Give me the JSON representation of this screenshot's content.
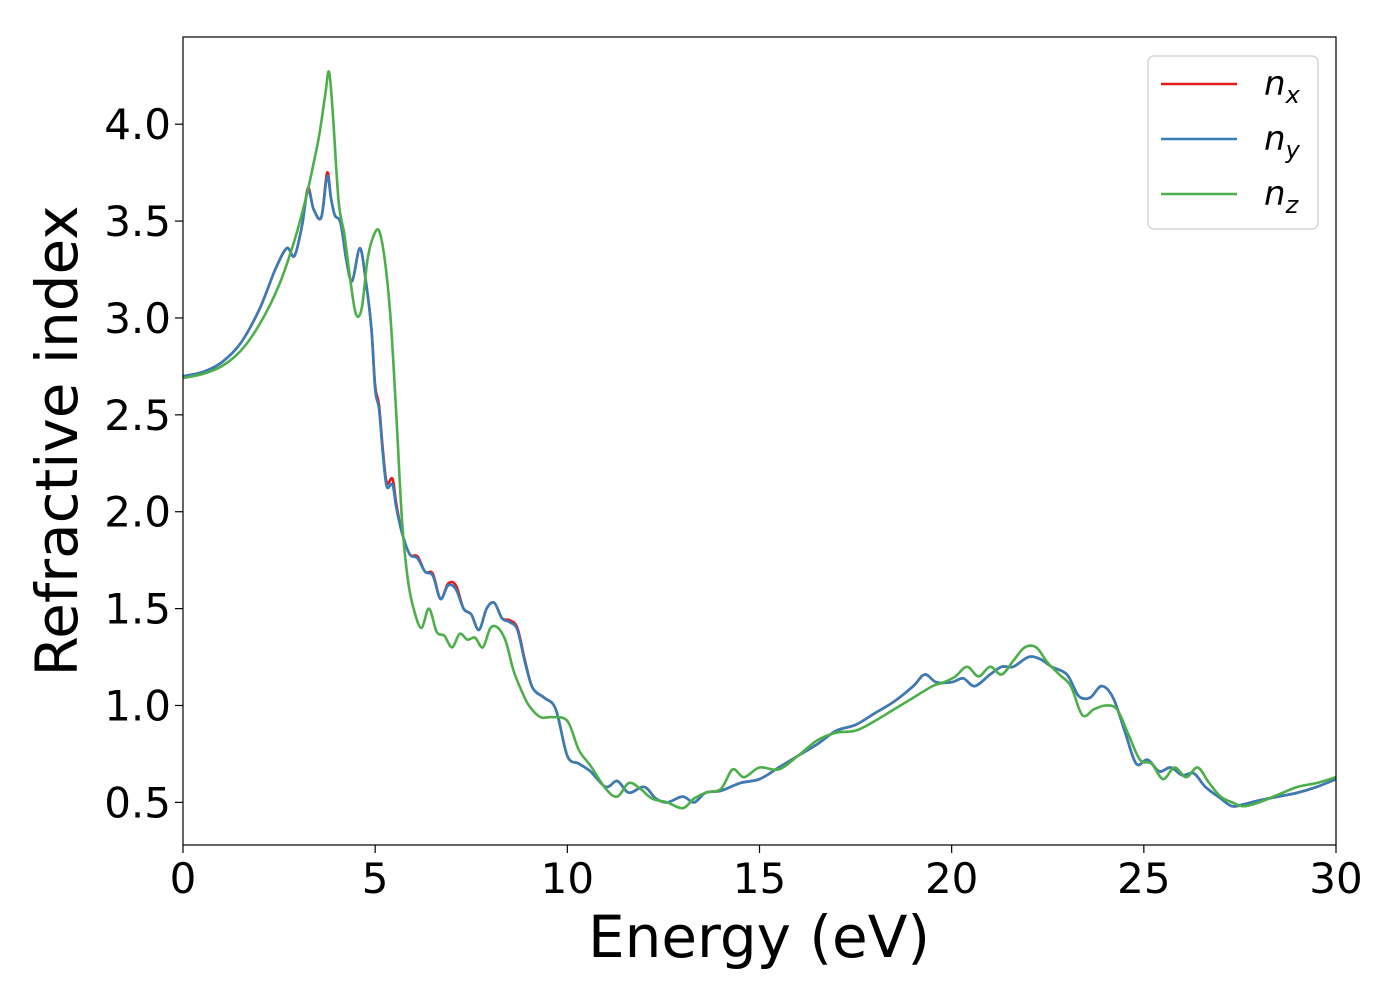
{
  "chart_data": {
    "type": "line",
    "xlabel": "Energy (eV)",
    "ylabel": "Refractive index",
    "xlim": [
      0,
      30
    ],
    "ylim": [
      0.28,
      4.45
    ],
    "xticks": [
      0,
      5,
      10,
      15,
      20,
      25,
      30
    ],
    "xtick_labels": [
      "0",
      "5",
      "10",
      "15",
      "20",
      "25",
      "30"
    ],
    "yticks": [
      0.5,
      1.0,
      1.5,
      2.0,
      2.5,
      3.0,
      3.5,
      4.0
    ],
    "ytick_labels": [
      "0.5",
      "1.0",
      "1.5",
      "2.0",
      "2.5",
      "3.0",
      "3.5",
      "4.0"
    ],
    "grid": false,
    "legend_position": "top-right",
    "series": [
      {
        "name": "n",
        "subscript": "x",
        "color": "#e41a1c",
        "x": [
          0,
          0.5,
          1,
          1.5,
          2,
          2.4,
          2.7,
          2.9,
          3.1,
          3.25,
          3.4,
          3.6,
          3.75,
          3.85,
          3.95,
          4.1,
          4.25,
          4.4,
          4.6,
          4.75,
          4.9,
          5.0,
          5.1,
          5.2,
          5.3,
          5.45,
          5.55,
          5.7,
          5.9,
          6.1,
          6.3,
          6.5,
          6.7,
          6.9,
          7.1,
          7.3,
          7.5,
          7.7,
          7.9,
          8.1,
          8.3,
          8.5,
          8.7,
          8.9,
          9.1,
          9.4,
          9.7,
          10,
          10.3,
          10.6,
          11,
          11.3,
          11.6,
          12,
          12.3,
          12.6,
          13,
          13.3,
          13.6,
          14,
          14.5,
          15,
          15.5,
          16,
          16.5,
          17,
          17.5,
          18,
          18.5,
          19,
          19.3,
          19.6,
          20,
          20.3,
          20.6,
          21,
          21.3,
          21.6,
          22,
          22.3,
          22.6,
          23,
          23.3,
          23.6,
          23.9,
          24.2,
          24.5,
          24.8,
          25.1,
          25.4,
          25.7,
          26,
          26.3,
          26.6,
          27,
          27.3,
          27.6,
          28,
          28.5,
          29,
          29.5,
          30
        ],
        "y": [
          2.7,
          2.72,
          2.77,
          2.87,
          3.05,
          3.25,
          3.36,
          3.32,
          3.48,
          3.67,
          3.56,
          3.52,
          3.75,
          3.62,
          3.53,
          3.49,
          3.3,
          3.19,
          3.36,
          3.2,
          2.95,
          2.65,
          2.55,
          2.32,
          2.15,
          2.17,
          2.04,
          1.89,
          1.78,
          1.77,
          1.69,
          1.68,
          1.55,
          1.63,
          1.62,
          1.5,
          1.47,
          1.39,
          1.5,
          1.53,
          1.45,
          1.44,
          1.4,
          1.23,
          1.09,
          1.04,
          0.98,
          0.74,
          0.7,
          0.66,
          0.58,
          0.61,
          0.55,
          0.58,
          0.52,
          0.5,
          0.53,
          0.5,
          0.55,
          0.56,
          0.6,
          0.62,
          0.68,
          0.74,
          0.8,
          0.87,
          0.9,
          0.96,
          1.02,
          1.1,
          1.16,
          1.12,
          1.12,
          1.14,
          1.1,
          1.16,
          1.2,
          1.2,
          1.25,
          1.24,
          1.2,
          1.16,
          1.05,
          1.04,
          1.1,
          1.04,
          0.87,
          0.7,
          0.72,
          0.66,
          0.68,
          0.64,
          0.65,
          0.58,
          0.52,
          0.48,
          0.49,
          0.51,
          0.53,
          0.55,
          0.58,
          0.62
        ]
      },
      {
        "name": "n",
        "subscript": "y",
        "color": "#377eb8",
        "x": [
          0,
          0.5,
          1,
          1.5,
          2,
          2.4,
          2.7,
          2.9,
          3.1,
          3.25,
          3.4,
          3.6,
          3.75,
          3.85,
          3.95,
          4.1,
          4.25,
          4.4,
          4.6,
          4.75,
          4.9,
          5.0,
          5.1,
          5.2,
          5.3,
          5.45,
          5.55,
          5.7,
          5.9,
          6.1,
          6.3,
          6.5,
          6.7,
          6.9,
          7.1,
          7.3,
          7.5,
          7.7,
          7.9,
          8.1,
          8.3,
          8.5,
          8.7,
          8.9,
          9.1,
          9.4,
          9.7,
          10,
          10.3,
          10.6,
          11,
          11.3,
          11.6,
          12,
          12.3,
          12.6,
          13,
          13.3,
          13.6,
          14,
          14.5,
          15,
          15.5,
          16,
          16.5,
          17,
          17.5,
          18,
          18.5,
          19,
          19.3,
          19.6,
          20,
          20.3,
          20.6,
          21,
          21.3,
          21.6,
          22,
          22.3,
          22.6,
          23,
          23.3,
          23.6,
          23.9,
          24.2,
          24.5,
          24.8,
          25.1,
          25.4,
          25.7,
          26,
          26.3,
          26.6,
          27,
          27.3,
          27.6,
          28,
          28.5,
          29,
          29.5,
          30
        ],
        "y": [
          2.7,
          2.72,
          2.77,
          2.87,
          3.05,
          3.25,
          3.36,
          3.32,
          3.48,
          3.66,
          3.56,
          3.52,
          3.73,
          3.62,
          3.53,
          3.49,
          3.3,
          3.19,
          3.36,
          3.2,
          2.95,
          2.63,
          2.53,
          2.3,
          2.13,
          2.14,
          2.02,
          1.89,
          1.78,
          1.76,
          1.69,
          1.67,
          1.55,
          1.62,
          1.6,
          1.5,
          1.47,
          1.39,
          1.5,
          1.53,
          1.45,
          1.43,
          1.39,
          1.22,
          1.09,
          1.04,
          0.98,
          0.74,
          0.7,
          0.66,
          0.58,
          0.61,
          0.55,
          0.58,
          0.52,
          0.5,
          0.53,
          0.5,
          0.55,
          0.56,
          0.6,
          0.62,
          0.68,
          0.74,
          0.8,
          0.87,
          0.9,
          0.96,
          1.02,
          1.1,
          1.16,
          1.12,
          1.12,
          1.14,
          1.1,
          1.16,
          1.2,
          1.2,
          1.25,
          1.24,
          1.2,
          1.16,
          1.05,
          1.04,
          1.1,
          1.04,
          0.87,
          0.7,
          0.72,
          0.66,
          0.68,
          0.64,
          0.65,
          0.58,
          0.52,
          0.48,
          0.49,
          0.51,
          0.53,
          0.55,
          0.58,
          0.62
        ]
      },
      {
        "name": "n",
        "subscript": "z",
        "color": "#4daf4a",
        "x": [
          0,
          0.5,
          1,
          1.5,
          2,
          2.5,
          2.9,
          3.2,
          3.4,
          3.55,
          3.7,
          3.8,
          3.9,
          4.05,
          4.2,
          4.35,
          4.5,
          4.65,
          4.8,
          4.95,
          5.1,
          5.25,
          5.4,
          5.55,
          5.7,
          5.85,
          6.0,
          6.2,
          6.4,
          6.6,
          6.8,
          7.0,
          7.2,
          7.4,
          7.6,
          7.8,
          8.0,
          8.2,
          8.4,
          8.6,
          8.8,
          9.0,
          9.3,
          9.6,
          10,
          10.3,
          10.6,
          11,
          11.3,
          11.6,
          11.9,
          12.2,
          12.6,
          13,
          13.3,
          13.6,
          14,
          14.3,
          14.6,
          15,
          15.5,
          16,
          16.5,
          17,
          17.5,
          18,
          18.5,
          19,
          19.5,
          19.8,
          20.1,
          20.4,
          20.7,
          21,
          21.3,
          21.6,
          21.9,
          22.2,
          22.5,
          22.8,
          23.1,
          23.4,
          23.7,
          24.0,
          24.3,
          24.6,
          24.9,
          25.2,
          25.5,
          25.8,
          26.1,
          26.4,
          26.7,
          27,
          27.3,
          27.6,
          28,
          28.5,
          29,
          29.5,
          30
        ],
        "y": [
          2.69,
          2.71,
          2.75,
          2.83,
          2.97,
          3.17,
          3.4,
          3.62,
          3.8,
          3.95,
          4.15,
          4.27,
          4.05,
          3.6,
          3.43,
          3.2,
          3.02,
          3.05,
          3.3,
          3.42,
          3.45,
          3.3,
          3.0,
          2.5,
          1.95,
          1.65,
          1.5,
          1.4,
          1.5,
          1.38,
          1.36,
          1.3,
          1.37,
          1.34,
          1.35,
          1.3,
          1.4,
          1.4,
          1.33,
          1.18,
          1.08,
          1.0,
          0.94,
          0.94,
          0.92,
          0.77,
          0.69,
          0.57,
          0.53,
          0.6,
          0.57,
          0.52,
          0.5,
          0.47,
          0.52,
          0.55,
          0.57,
          0.67,
          0.63,
          0.68,
          0.67,
          0.74,
          0.82,
          0.86,
          0.87,
          0.92,
          0.98,
          1.04,
          1.1,
          1.12,
          1.15,
          1.2,
          1.15,
          1.2,
          1.16,
          1.23,
          1.3,
          1.3,
          1.22,
          1.16,
          1.1,
          0.95,
          0.98,
          1.0,
          0.98,
          0.85,
          0.72,
          0.7,
          0.62,
          0.68,
          0.63,
          0.68,
          0.6,
          0.53,
          0.5,
          0.48,
          0.5,
          0.54,
          0.58,
          0.6,
          0.63
        ]
      }
    ]
  }
}
